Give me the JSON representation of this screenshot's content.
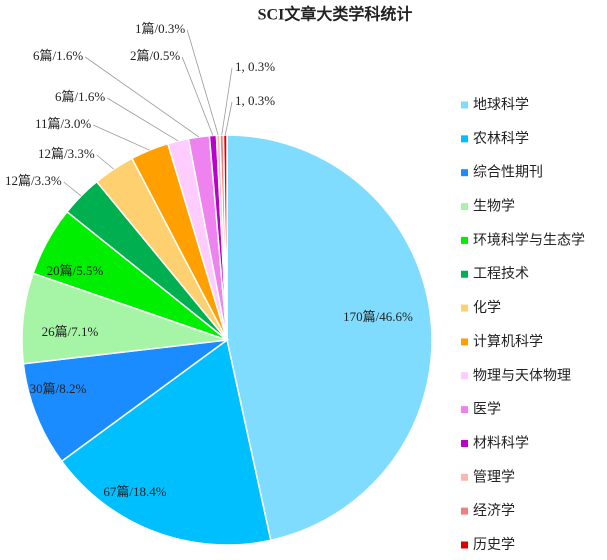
{
  "chart_data": {
    "type": "pie",
    "title": "SCI文章大类学科统计",
    "categories": [
      "地球科学",
      "农林科学",
      "综合性期刊",
      "生物学",
      "环境科学与生态学",
      "工程技术",
      "化学",
      "计算机科学",
      "物理与天体物理",
      "医学",
      "材料科学",
      "管理学",
      "经济学",
      "历史学"
    ],
    "values": [
      170,
      67,
      30,
      26,
      20,
      12,
      12,
      11,
      6,
      6,
      2,
      1,
      1,
      1
    ],
    "value_labels": [
      "170篇/46.6%",
      "67篇/18.4%",
      "30篇/8.2%",
      "26篇/7.1%",
      "20篇/5.5%",
      "12篇/3.3%",
      "12篇/3.3%",
      "11篇/3.0%",
      "6篇/1.6%",
      "6篇/1.6%",
      "2篇/0.5%",
      "1篇/0.3%",
      "1, 0.3%",
      "1, 0.3%"
    ],
    "colors": [
      "#80dcff",
      "#00bfff",
      "#1a8cff",
      "#a6f5a6",
      "#00ee00",
      "#00b050",
      "#ffd070",
      "#ffa000",
      "#ffccff",
      "#ee82ee",
      "#bb00cc",
      "#ffb6b0",
      "#f08080",
      "#dd0000"
    ],
    "legend": "right"
  }
}
